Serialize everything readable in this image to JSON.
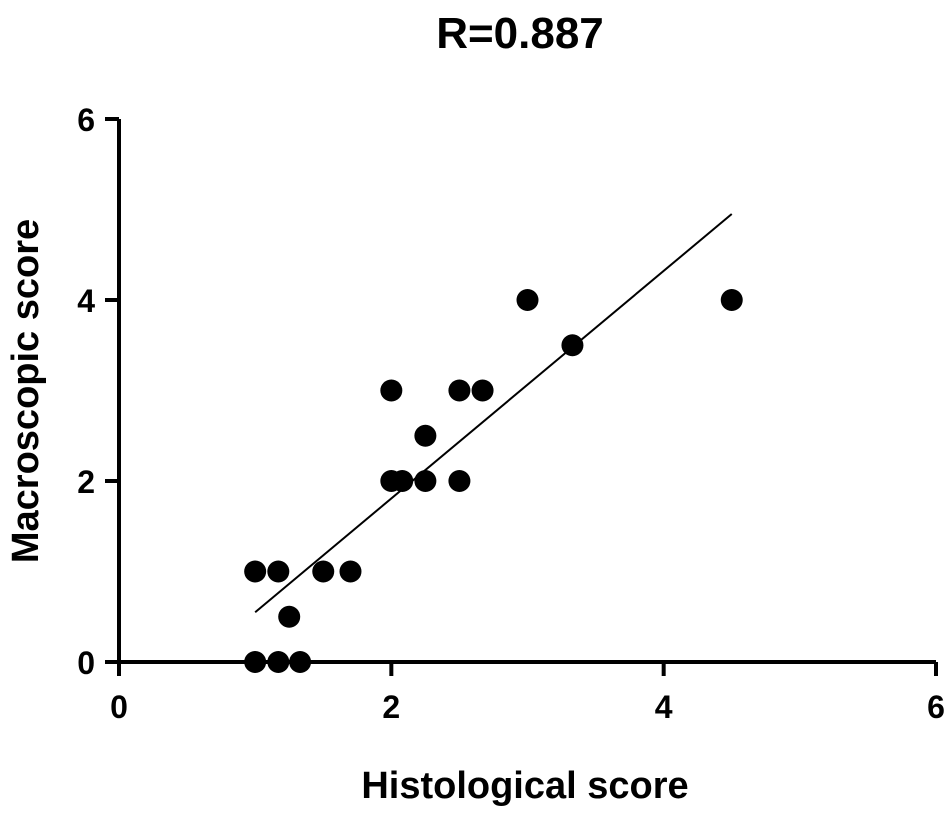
{
  "chart_data": {
    "type": "scatter",
    "title": "R=0.887",
    "xlabel": "Histological score",
    "ylabel": "Macroscopic score",
    "xlim": [
      0,
      6
    ],
    "ylim": [
      0,
      6
    ],
    "xticks": [
      "0",
      "2",
      "4",
      "6"
    ],
    "yticks": [
      "0",
      "2",
      "4",
      "6"
    ],
    "grid": false,
    "points": [
      {
        "x": 1.0,
        "y": 1.0
      },
      {
        "x": 1.17,
        "y": 1.0
      },
      {
        "x": 1.25,
        "y": 0.5
      },
      {
        "x": 1.0,
        "y": 0.0
      },
      {
        "x": 1.17,
        "y": 0.0
      },
      {
        "x": 1.33,
        "y": 0.0
      },
      {
        "x": 1.5,
        "y": 1.0
      },
      {
        "x": 1.7,
        "y": 1.0
      },
      {
        "x": 2.0,
        "y": 3.0
      },
      {
        "x": 2.0,
        "y": 2.0
      },
      {
        "x": 2.08,
        "y": 2.0
      },
      {
        "x": 2.25,
        "y": 2.5
      },
      {
        "x": 2.25,
        "y": 2.0
      },
      {
        "x": 2.5,
        "y": 3.0
      },
      {
        "x": 2.67,
        "y": 3.0
      },
      {
        "x": 2.5,
        "y": 2.0
      },
      {
        "x": 3.0,
        "y": 4.0
      },
      {
        "x": 3.33,
        "y": 3.5
      },
      {
        "x": 4.5,
        "y": 4.0
      }
    ],
    "regression_line": {
      "x": [
        1.0,
        4.5
      ],
      "y": [
        0.55,
        4.95
      ]
    },
    "colors": {
      "points": "#000000",
      "line": "#000000",
      "axes": "#000000"
    }
  }
}
